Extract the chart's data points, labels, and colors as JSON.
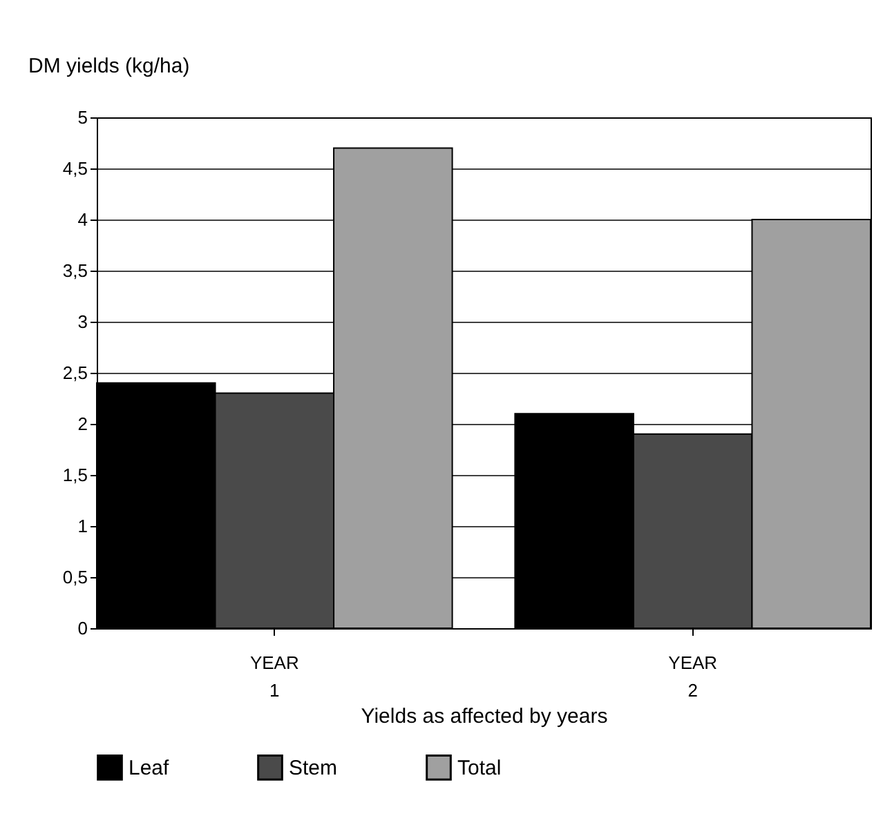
{
  "chart_data": {
    "type": "bar",
    "ylabel": "DM yields (kg/ha)",
    "xlabel": "Yields as affected by years",
    "categories": [
      "YEAR 1",
      "YEAR 2"
    ],
    "series": [
      {
        "name": "Leaf",
        "color": "#000000",
        "values": [
          2.4,
          2.1
        ]
      },
      {
        "name": "Stem",
        "color": "#4a4a4a",
        "values": [
          2.3,
          1.9
        ]
      },
      {
        "name": "Total",
        "color": "#a0a0a0",
        "values": [
          4.7,
          4.0
        ]
      }
    ],
    "ylim": [
      0,
      5
    ],
    "yticks": [
      0,
      {
        "value": 0.5,
        "label": "0,5"
      },
      1,
      {
        "value": 1.5,
        "label": "1,5"
      },
      2,
      {
        "value": 2.5,
        "label": "2,5"
      },
      3,
      {
        "value": 3.5,
        "label": "3,5"
      },
      4,
      {
        "value": 4.5,
        "label": "4,5"
      },
      5
    ],
    "grid": "y",
    "legend": "bottom"
  }
}
